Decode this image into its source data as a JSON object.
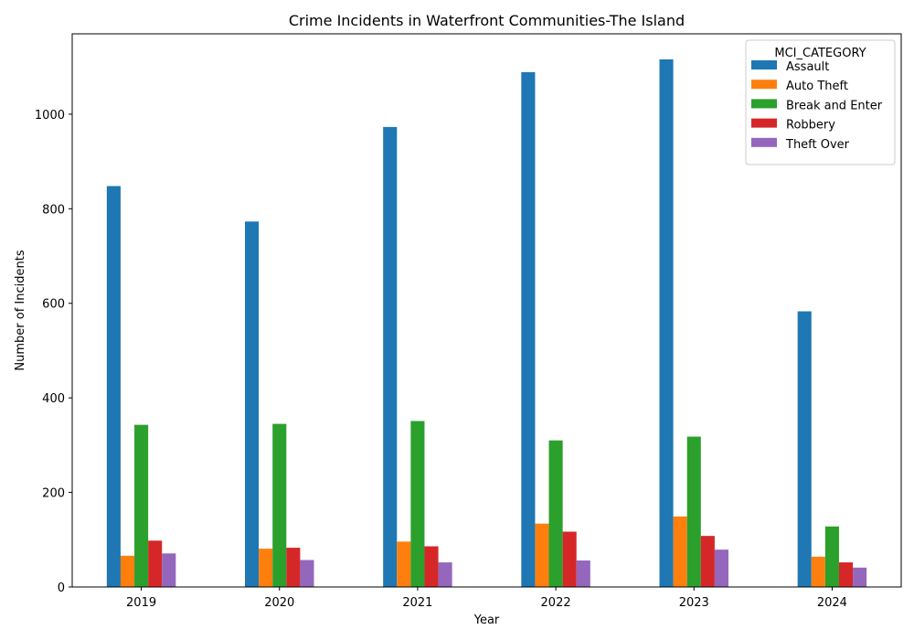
{
  "chart_data": {
    "type": "bar",
    "title": "Crime Incidents in Waterfront Communities-The Island",
    "xlabel": "Year",
    "ylabel": "Number of Incidents",
    "categories": [
      "2019",
      "2020",
      "2021",
      "2022",
      "2023",
      "2024"
    ],
    "ylim": [
      0,
      1170
    ],
    "yticks": [
      0,
      200,
      400,
      600,
      800,
      1000
    ],
    "legend": {
      "title": "MCI_CATEGORY",
      "position": "top-right"
    },
    "grid": false,
    "series": [
      {
        "name": "Assault",
        "color": "#1f77b4",
        "values": [
          848,
          773,
          973,
          1089,
          1116,
          583
        ]
      },
      {
        "name": "Auto Theft",
        "color": "#ff7f0e",
        "values": [
          66,
          81,
          96,
          134,
          149,
          64
        ]
      },
      {
        "name": "Break and Enter",
        "color": "#2ca02c",
        "values": [
          343,
          345,
          351,
          310,
          318,
          128
        ]
      },
      {
        "name": "Robbery",
        "color": "#d62728",
        "values": [
          98,
          83,
          86,
          117,
          108,
          52
        ]
      },
      {
        "name": "Theft Over",
        "color": "#9467bd",
        "values": [
          71,
          57,
          52,
          56,
          79,
          41
        ]
      }
    ]
  }
}
